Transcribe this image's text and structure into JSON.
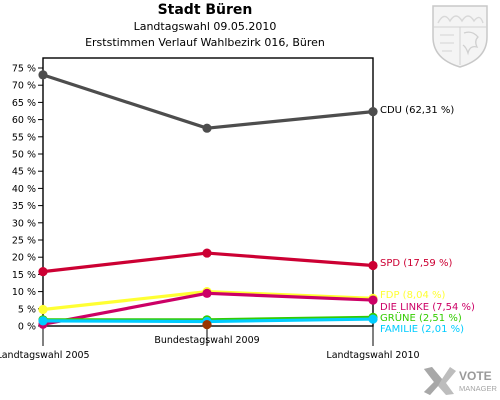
{
  "header": {
    "title": "Stadt Büren",
    "subtitle": "Landtagswahl 09.05.2010",
    "subtitle2": "Erststimmen Verlauf Wahlbezirk 016, Büren"
  },
  "branding": {
    "logo_line1": "VOTE",
    "logo_line2": "MANAGER"
  },
  "chart_data": {
    "type": "line",
    "title": "Stadt Büren",
    "subtitle": "Landtagswahl 09.05.2010 / Ersstimmen Verlauf Wahlbezirk 016, Büren",
    "categories": [
      "Landtagswahl 2005",
      "Bundestagswahl 2009",
      "Landtagswahl 2010"
    ],
    "ylim": [
      0,
      75
    ],
    "yticks": [
      0,
      5,
      10,
      15,
      20,
      25,
      30,
      35,
      40,
      45,
      50,
      55,
      60,
      65,
      70,
      75
    ],
    "ytick_labels": [
      "0 %",
      "5 %",
      "10 %",
      "15 %",
      "20 %",
      "25 %",
      "30 %",
      "35 %",
      "40 %",
      "45 %",
      "50 %",
      "55 %",
      "60 %",
      "65 %",
      "70 %",
      "75 %"
    ],
    "grid": false,
    "legend": "end-labels",
    "series": [
      {
        "name": "CDU",
        "end_label": "CDU (62,31 %)",
        "color": "#4d4d4d",
        "values": [
          73.0,
          57.5,
          62.31
        ]
      },
      {
        "name": "SPD",
        "end_label": "SPD (17,59 %)",
        "color": "#cc0033",
        "values": [
          15.8,
          21.2,
          17.59
        ]
      },
      {
        "name": "FDP",
        "end_label": "FDP (8,04 %)",
        "color": "#ffff33",
        "values": [
          4.8,
          10.0,
          8.04
        ]
      },
      {
        "name": "DIE LINKE",
        "end_label": "DIE LINKE (7,54 %)",
        "color": "#cc0066",
        "values": [
          0.5,
          9.5,
          7.54
        ]
      },
      {
        "name": "GRÜNE",
        "end_label": "GRÜNE (2,51 %)",
        "color": "#33cc00",
        "values": [
          1.8,
          1.8,
          2.51
        ]
      },
      {
        "name": "FAMILIE",
        "end_label": "FAMILIE (2,01 %)",
        "color": "#00ccff",
        "values": [
          1.5,
          1.3,
          2.01
        ]
      },
      {
        "name": "",
        "end_label": "",
        "color": "#993300",
        "values": [
          null,
          0.4,
          null
        ]
      }
    ]
  }
}
